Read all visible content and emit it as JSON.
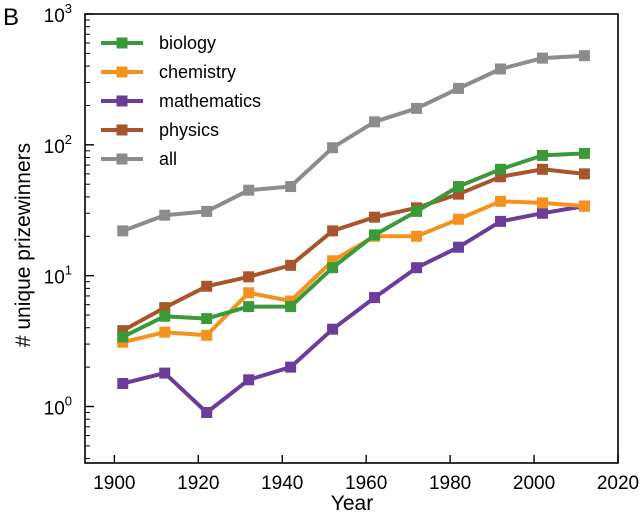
{
  "panel_label": "B",
  "chart_data": {
    "type": "line",
    "title": "",
    "xlabel": "Year",
    "ylabel": "# unique prizewinners",
    "yscale": "log",
    "xlim": [
      1893,
      2020
    ],
    "ylim": [
      0.37,
      1000
    ],
    "x_ticks": [
      1900,
      1920,
      1940,
      1960,
      1980,
      2000,
      2020
    ],
    "y_ticks": [
      {
        "value": 1,
        "base": "10",
        "exp": "0"
      },
      {
        "value": 10,
        "base": "10",
        "exp": "1"
      },
      {
        "value": 100,
        "base": "10",
        "exp": "2"
      },
      {
        "value": 1000,
        "base": "10",
        "exp": "3"
      }
    ],
    "grid": false,
    "legend_position": "top-left",
    "x": [
      1902,
      1912,
      1922,
      1932,
      1942,
      1952,
      1962,
      1972,
      1982,
      1992,
      2002,
      2012
    ],
    "series": [
      {
        "name": "biology",
        "color": "#3a9a3a",
        "values": [
          3.4,
          4.9,
          4.7,
          5.8,
          5.8,
          11.5,
          20.5,
          31,
          48,
          65,
          83,
          86
        ]
      },
      {
        "name": "chemistry",
        "color": "#f5921e",
        "values": [
          3.1,
          3.7,
          3.5,
          7.4,
          6.4,
          13,
          20,
          20,
          27,
          37,
          36,
          34
        ]
      },
      {
        "name": "mathematics",
        "color": "#6a3d9a",
        "values": [
          1.5,
          1.8,
          0.9,
          1.6,
          2.0,
          3.9,
          6.8,
          11.5,
          16.5,
          26,
          30,
          34
        ]
      },
      {
        "name": "physics",
        "color": "#a9552b",
        "values": [
          3.8,
          5.7,
          8.3,
          9.8,
          12,
          22,
          28,
          33,
          42,
          57,
          65,
          60
        ]
      },
      {
        "name": "all",
        "color": "#8c8c8c",
        "values": [
          22,
          29,
          31,
          45,
          48,
          95,
          150,
          190,
          270,
          380,
          460,
          480
        ]
      }
    ]
  }
}
